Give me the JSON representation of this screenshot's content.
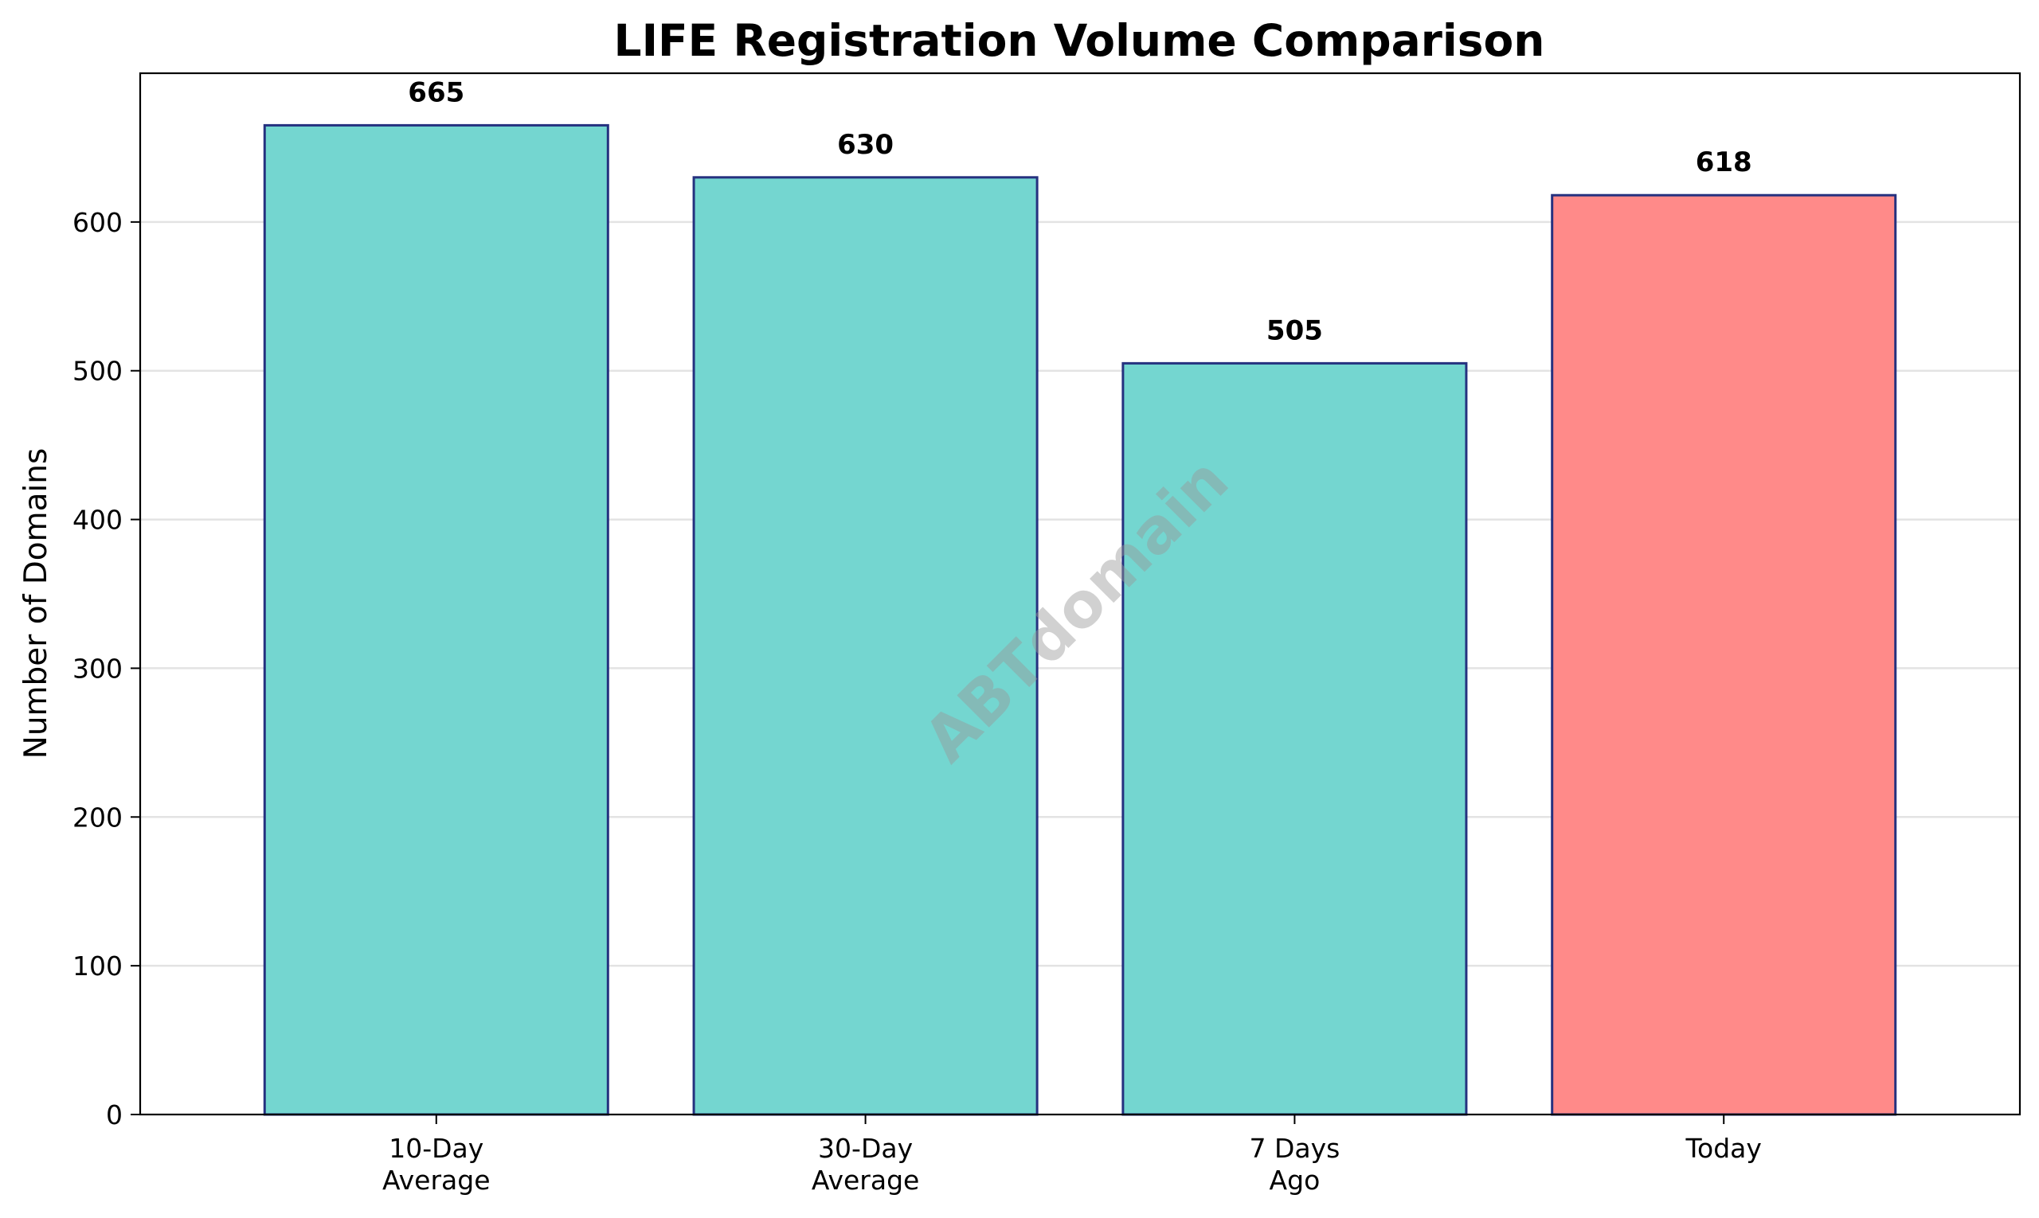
{
  "chart_data": {
    "type": "bar",
    "title": "LIFE Registration Volume Comparison",
    "xlabel": "",
    "ylabel": "Number of Domains",
    "categories": [
      [
        "10-Day",
        "Average"
      ],
      [
        "30-Day",
        "Average"
      ],
      [
        "7 Days",
        "Ago"
      ],
      [
        "Today"
      ]
    ],
    "values": [
      665,
      630,
      505,
      618
    ],
    "data_labels": [
      "665",
      "630",
      "505",
      "618"
    ],
    "ylim": [
      0,
      700
    ],
    "yticks": [
      0,
      100,
      200,
      300,
      400,
      500,
      600
    ],
    "ytick_labels": [
      "0",
      "100",
      "200",
      "300",
      "400",
      "500",
      "600"
    ],
    "grid": "y",
    "bar_colors": [
      "#74d6d0",
      "#74d6d0",
      "#74d6d0",
      "#ff8a89"
    ],
    "bar_edge_color": "#25317f",
    "grid_color": "#e3e3e3",
    "watermark": "ABTdomain"
  }
}
